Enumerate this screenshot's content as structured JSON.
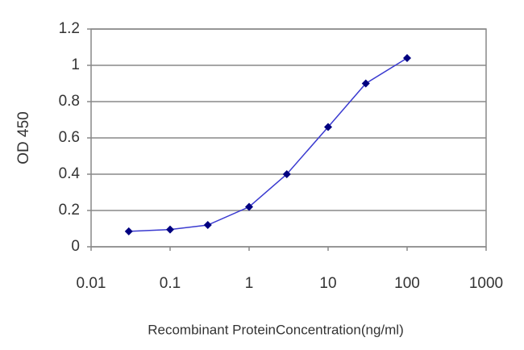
{
  "chart_data": {
    "type": "line",
    "x_label": "Recombinant ProteinConcentration(ng/ml)",
    "y_label": "OD 450",
    "xscale": "log",
    "x": [
      0.03,
      0.1,
      0.3,
      1,
      3,
      10,
      30,
      100
    ],
    "series": [
      {
        "name": "OD 450",
        "color": "#3a3ad0",
        "marker_color": "#000080",
        "values": [
          0.085,
          0.095,
          0.12,
          0.22,
          0.4,
          0.66,
          0.9,
          1.04
        ]
      }
    ],
    "xlim": [
      0.01,
      1000
    ],
    "xticks": [
      0.01,
      0.1,
      1,
      10,
      100,
      1000
    ],
    "ylim": [
      0,
      1.2
    ],
    "yticks": [
      0,
      0.2,
      0.4,
      0.6,
      0.8,
      1,
      1.2
    ],
    "grid": true
  }
}
